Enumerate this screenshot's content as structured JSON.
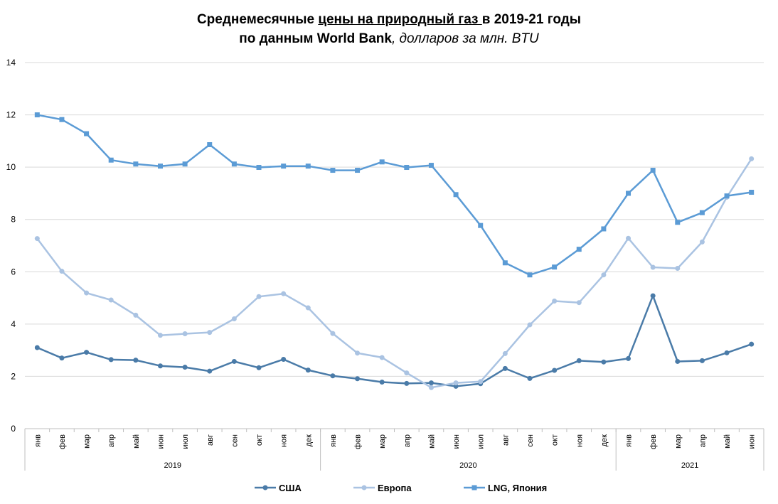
{
  "chart_data": {
    "type": "line",
    "title_parts": {
      "line1_a": "Среднемесячные ",
      "line1_b": "цены на природный газ ",
      "line1_c": "в 2019-21 годы",
      "line2_a": "по данным World Bank",
      "line2_b": ", долларов за млн. BTU"
    },
    "ylim": [
      0,
      14
    ],
    "yticks": [
      "0",
      "2",
      "4",
      "6",
      "8",
      "10",
      "12",
      "14"
    ],
    "grid": true,
    "legend_position": "bottom",
    "categories": [
      "янв",
      "фев",
      "мар",
      "апр",
      "май",
      "июн",
      "июл",
      "авг",
      "сен",
      "окт",
      "ноя",
      "дек",
      "янв",
      "фев",
      "мар",
      "апр",
      "май",
      "июн",
      "июл",
      "авг",
      "сен",
      "окт",
      "ноя",
      "дек",
      "янв",
      "фев",
      "мар",
      "апр",
      "май",
      "июн"
    ],
    "years": [
      {
        "label": "2019",
        "span": 12
      },
      {
        "label": "2020",
        "span": 12
      },
      {
        "label": "2021",
        "span": 6
      }
    ],
    "series": [
      {
        "name": "США",
        "color": "#4a7ba8",
        "marker": "circle",
        "values": [
          3.1,
          2.7,
          2.92,
          2.64,
          2.62,
          2.4,
          2.35,
          2.2,
          2.57,
          2.33,
          2.65,
          2.24,
          2.02,
          1.91,
          1.78,
          1.73,
          1.75,
          1.62,
          1.72,
          2.3,
          1.92,
          2.23,
          2.6,
          2.55,
          2.68,
          5.08,
          2.57,
          2.6,
          2.9,
          3.23
        ]
      },
      {
        "name": "Европа",
        "color": "#aac3e2",
        "marker": "circle",
        "values": [
          7.27,
          6.02,
          5.19,
          4.92,
          4.34,
          3.57,
          3.63,
          3.68,
          4.2,
          5.05,
          5.16,
          4.62,
          3.64,
          2.89,
          2.72,
          2.13,
          1.57,
          1.75,
          1.8,
          2.87,
          3.97,
          4.88,
          4.82,
          5.88,
          7.28,
          6.17,
          6.13,
          7.14,
          8.85,
          10.32
        ]
      },
      {
        "name": "LNG, Япония",
        "color": "#5b9bd5",
        "marker": "square",
        "values": [
          12.0,
          11.82,
          11.28,
          10.27,
          10.12,
          10.04,
          10.12,
          10.86,
          10.12,
          9.99,
          10.04,
          10.04,
          9.88,
          9.88,
          10.2,
          9.99,
          10.07,
          8.95,
          7.77,
          6.34,
          5.88,
          6.18,
          6.86,
          7.64,
          9.0,
          9.88,
          7.89,
          8.26,
          8.9,
          9.04
        ]
      }
    ]
  }
}
